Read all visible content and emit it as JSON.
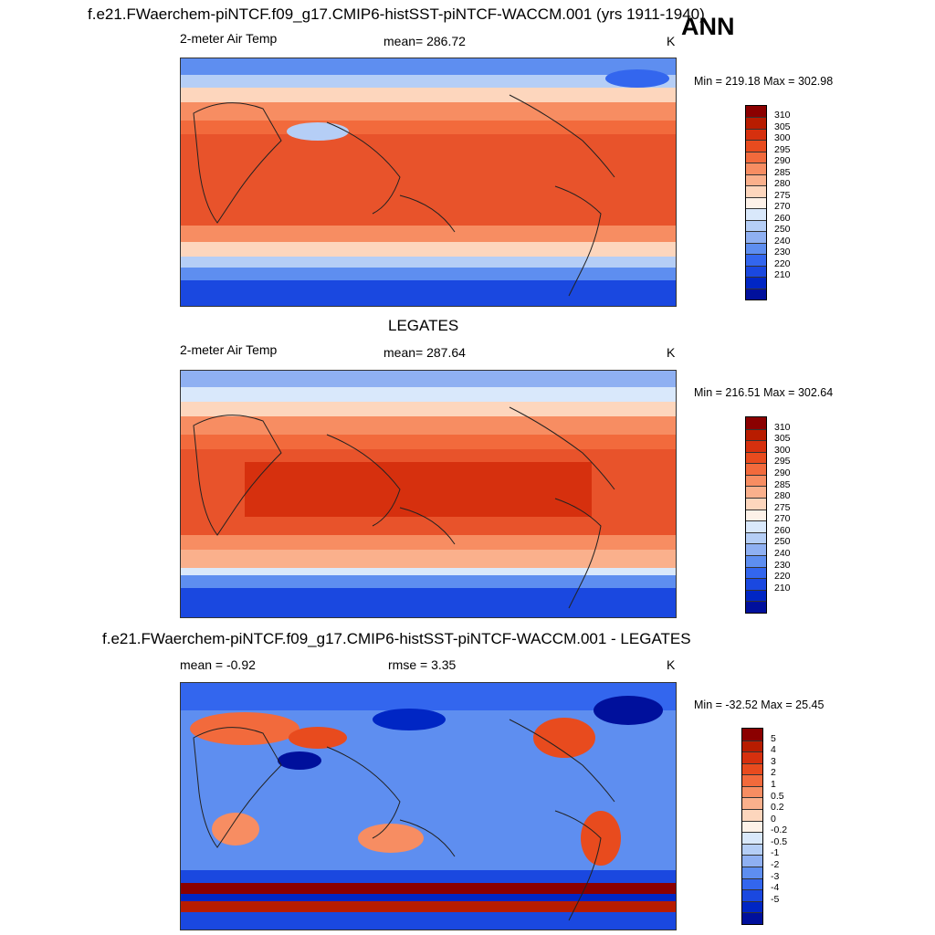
{
  "header": {
    "title": "f.e21.FWaerchem-piNTCF.f09_g17.CMIP6-histSST-piNTCF-WACCM.001 (yrs 1911-1940)",
    "season": "ANN"
  },
  "chart_data": [
    {
      "type": "heatmap",
      "panel": "model",
      "left_label": "2-meter Air Temp",
      "center_label": "mean= 286.72",
      "units": "K",
      "minmax": "Min = 219.18 Max = 302.98",
      "mean": 286.72,
      "min": 219.18,
      "max": 302.98,
      "colorbar": {
        "levels": [
          "310",
          "305",
          "300",
          "295",
          "290",
          "285",
          "280",
          "275",
          "270",
          "260",
          "250",
          "240",
          "230",
          "220",
          "210"
        ],
        "colors": [
          "#8b0000",
          "#b81c00",
          "#d6300e",
          "#e84b1e",
          "#f26a3c",
          "#f78d62",
          "#fab08c",
          "#fdd6bd",
          "#fdf1e8",
          "#d9e8fb",
          "#b5cef6",
          "#8fb0f2",
          "#5e8ef0",
          "#3366ee",
          "#1a48e0",
          "#0026c4",
          "#00109c"
        ]
      }
    },
    {
      "type": "heatmap",
      "panel": "observation",
      "panel_title": "LEGATES",
      "left_label": "2-meter Air Temp",
      "center_label": "mean= 287.64",
      "units": "K",
      "minmax": "Min = 216.51 Max = 302.64",
      "mean": 287.64,
      "min": 216.51,
      "max": 302.64,
      "colorbar": {
        "levels": [
          "310",
          "305",
          "300",
          "295",
          "290",
          "285",
          "280",
          "275",
          "270",
          "260",
          "250",
          "240",
          "230",
          "220",
          "210"
        ],
        "colors": [
          "#8b0000",
          "#b81c00",
          "#d6300e",
          "#e84b1e",
          "#f26a3c",
          "#f78d62",
          "#fab08c",
          "#fdd6bd",
          "#fdf1e8",
          "#d9e8fb",
          "#b5cef6",
          "#8fb0f2",
          "#5e8ef0",
          "#3366ee",
          "#1a48e0",
          "#0026c4",
          "#00109c"
        ]
      }
    },
    {
      "type": "heatmap",
      "panel": "difference",
      "panel_title": "f.e21.FWaerchem-piNTCF.f09_g17.CMIP6-histSST-piNTCF-WACCM.001 - LEGATES",
      "left_label": "mean =  -0.92",
      "center_label": "rmse =   3.35",
      "units": "K",
      "minmax": "Min = -32.52 Max =  25.45",
      "mean": -0.92,
      "rmse": 3.35,
      "min": -32.52,
      "max": 25.45,
      "colorbar": {
        "levels": [
          "5",
          "4",
          "3",
          "2",
          "1",
          "0.5",
          "0.2",
          "0",
          "-0.2",
          "-0.5",
          "-1",
          "-2",
          "-3",
          "-4",
          "-5"
        ],
        "colors": [
          "#8b0000",
          "#b81c00",
          "#d6300e",
          "#e84b1e",
          "#f26a3c",
          "#f78d62",
          "#fab08c",
          "#fdd6bd",
          "#fdf1e8",
          "#d9e8fb",
          "#b5cef6",
          "#8fb0f2",
          "#5e8ef0",
          "#3366ee",
          "#1a48e0",
          "#0026c4",
          "#00109c"
        ]
      }
    }
  ]
}
